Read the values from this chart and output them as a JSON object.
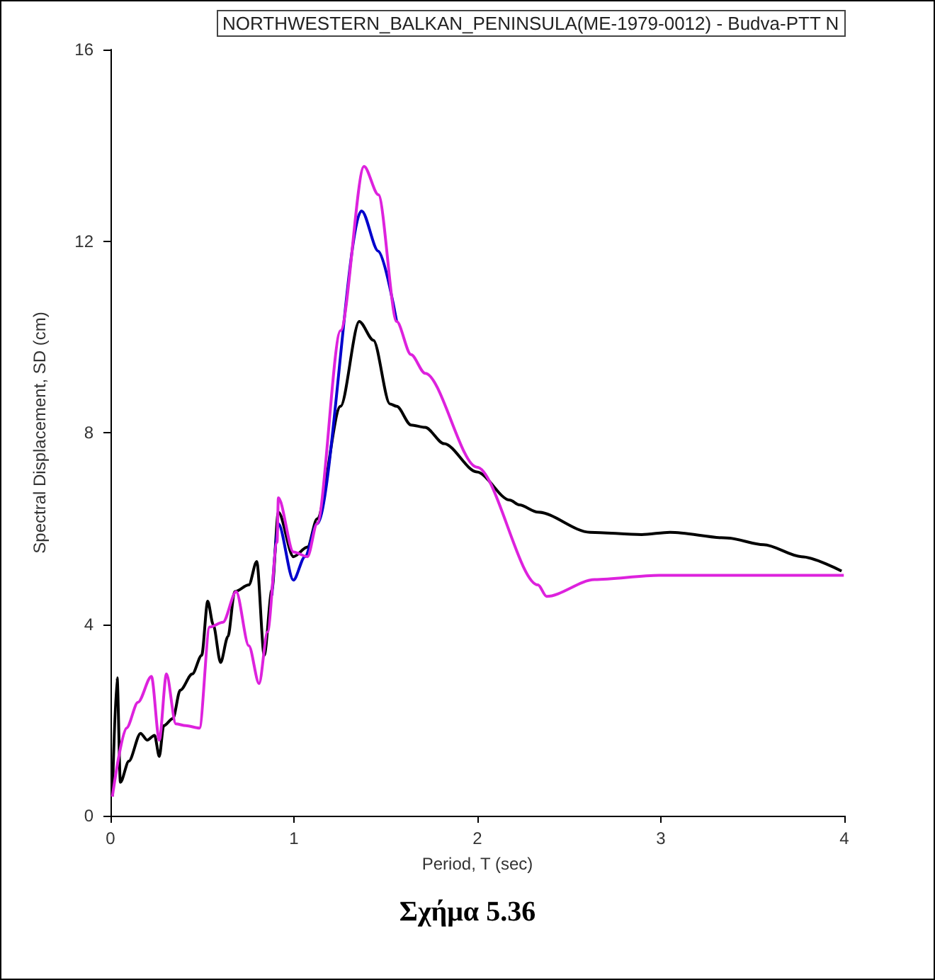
{
  "chart_data": {
    "type": "line",
    "title": "NORTHWESTERN_BALKAN_PENINSULA(ME-1979-0012) - Budva-PTT N",
    "xlabel": "Period, T (sec)",
    "ylabel": "Spectral Displacement, SD (cm)",
    "annotations": [
      "Σχήμα 5.36"
    ],
    "xlim": [
      0,
      4
    ],
    "xticks": [
      0,
      1,
      2,
      3,
      4
    ],
    "ylim": [
      0,
      16
    ],
    "yticks": [
      0,
      4,
      8,
      12,
      16
    ],
    "grid": false,
    "marker": "none",
    "line_style": "solid",
    "series": [
      {
        "color": "#000000",
        "x": [
          0.01,
          0.036,
          0.054,
          0.1,
          0.164,
          0.2,
          0.24,
          0.266,
          0.29,
          0.34,
          0.38,
          0.446,
          0.497,
          0.53,
          0.56,
          0.6,
          0.64,
          0.677,
          0.754,
          0.797,
          0.838,
          0.88,
          0.915,
          0.997,
          1.074,
          1.126,
          1.254,
          1.356,
          1.433,
          1.523,
          1.56,
          1.638,
          1.715,
          1.818,
          1.997,
          2.177,
          2.228,
          2.33,
          2.613,
          2.895,
          3.05,
          3.36,
          3.56,
          3.767,
          3.985
        ],
        "values": [
          0.4,
          2.88,
          0.7,
          1.14,
          1.72,
          1.58,
          1.68,
          1.24,
          1.88,
          2.03,
          2.62,
          2.96,
          3.35,
          4.48,
          3.99,
          3.2,
          3.74,
          4.68,
          4.82,
          5.31,
          3.35,
          4.72,
          6.34,
          5.41,
          5.61,
          6.2,
          8.55,
          10.32,
          9.93,
          8.6,
          8.55,
          8.16,
          8.11,
          7.77,
          7.18,
          6.59,
          6.49,
          6.34,
          5.92,
          5.87,
          5.92,
          5.8,
          5.66,
          5.41,
          5.11
        ]
      },
      {
        "color": "#0000cc",
        "x": [
          0.88,
          0.915,
          0.997,
          1.06,
          1.126,
          1.369,
          1.46,
          1.56
        ],
        "values": [
          4.6,
          6.1,
          4.92,
          5.41,
          6.1,
          12.63,
          11.79,
          10.32
        ]
      },
      {
        "color": "#dd22dd",
        "x": [
          0.01,
          0.087,
          0.15,
          0.223,
          0.266,
          0.305,
          0.356,
          0.41,
          0.485,
          0.54,
          0.613,
          0.685,
          0.754,
          0.81,
          0.856,
          0.908,
          0.915,
          0.997,
          1.074,
          1.126,
          1.254,
          1.382,
          1.46,
          1.56,
          1.638,
          1.715,
          1.997,
          2.33,
          2.377,
          2.638,
          2.99,
          3.997
        ],
        "values": [
          0.4,
          1.83,
          2.37,
          2.91,
          1.58,
          2.96,
          1.92,
          1.88,
          1.83,
          3.94,
          4.04,
          4.68,
          3.55,
          2.76,
          3.84,
          5.71,
          6.64,
          5.51,
          5.41,
          6.1,
          10.13,
          13.56,
          12.97,
          10.32,
          9.63,
          9.24,
          7.28,
          4.82,
          4.58,
          4.93,
          5.02,
          5.02
        ]
      }
    ]
  }
}
